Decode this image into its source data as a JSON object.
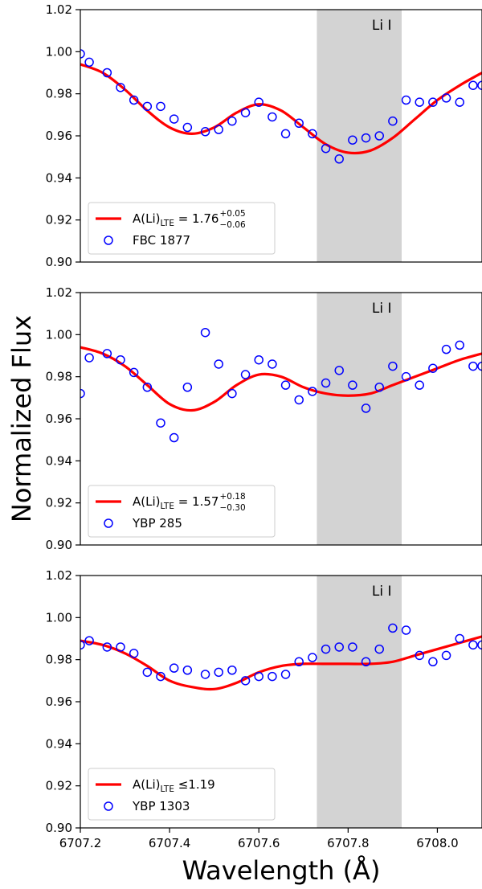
{
  "chart_data": [
    {
      "type": "line",
      "band_label": "Li I",
      "band_x": [
        6707.73,
        6707.92
      ],
      "xlim": [
        6707.2,
        6708.1
      ],
      "ylim": [
        0.9,
        1.02
      ],
      "yticks": [
        "0.90",
        "0.92",
        "0.94",
        "0.96",
        "0.98",
        "1.00",
        "1.02"
      ],
      "xticks": [],
      "legend": {
        "location": "lower-left",
        "line_main": "A(Li)",
        "line_sub": "LTE",
        "line_rel": " = 1.76",
        "sup": "+0.05",
        "sub": "−0.06",
        "points_label": "FBC 1877"
      },
      "series": [
        {
          "kind": "model-line",
          "color": "#ff0000",
          "x": [
            6707.2,
            6707.25,
            6707.3,
            6707.35,
            6707.4,
            6707.45,
            6707.5,
            6707.55,
            6707.6,
            6707.65,
            6707.7,
            6707.75,
            6707.8,
            6707.85,
            6707.9,
            6707.95,
            6708.0,
            6708.05,
            6708.1
          ],
          "y": [
            0.994,
            0.99,
            0.982,
            0.972,
            0.964,
            0.961,
            0.964,
            0.971,
            0.975,
            0.972,
            0.964,
            0.956,
            0.952,
            0.953,
            0.959,
            0.968,
            0.977,
            0.984,
            0.99
          ]
        },
        {
          "kind": "observed-points",
          "color": "#0000ff",
          "x": [
            6707.2,
            6707.22,
            6707.26,
            6707.29,
            6707.32,
            6707.35,
            6707.38,
            6707.41,
            6707.44,
            6707.48,
            6707.51,
            6707.54,
            6707.57,
            6707.6,
            6707.63,
            6707.66,
            6707.69,
            6707.72,
            6707.75,
            6707.78,
            6707.81,
            6707.84,
            6707.87,
            6707.9,
            6707.93,
            6707.96,
            6707.99,
            6708.02,
            6708.05,
            6708.08,
            6708.1
          ],
          "y": [
            0.999,
            0.995,
            0.99,
            0.983,
            0.977,
            0.974,
            0.974,
            0.968,
            0.964,
            0.962,
            0.963,
            0.967,
            0.971,
            0.976,
            0.969,
            0.961,
            0.966,
            0.961,
            0.954,
            0.949,
            0.958,
            0.959,
            0.96,
            0.967,
            0.977,
            0.976,
            0.976,
            0.978,
            0.976,
            0.984,
            0.984
          ]
        }
      ]
    },
    {
      "type": "line",
      "band_label": "Li I",
      "band_x": [
        6707.73,
        6707.92
      ],
      "xlim": [
        6707.2,
        6708.1
      ],
      "ylim": [
        0.9,
        1.02
      ],
      "yticks": [
        "0.90",
        "0.92",
        "0.94",
        "0.96",
        "0.98",
        "1.00",
        "1.02"
      ],
      "xticks": [],
      "legend": {
        "location": "lower-left",
        "line_main": "A(Li)",
        "line_sub": "LTE",
        "line_rel": " = 1.57",
        "sup": "+0.18",
        "sub": "−0.30",
        "points_label": "YBP 285"
      },
      "series": [
        {
          "kind": "model-line",
          "color": "#ff0000",
          "x": [
            6707.2,
            6707.25,
            6707.3,
            6707.35,
            6707.4,
            6707.45,
            6707.5,
            6707.55,
            6707.6,
            6707.65,
            6707.7,
            6707.75,
            6707.8,
            6707.85,
            6707.9,
            6707.95,
            6708.0,
            6708.05,
            6708.1
          ],
          "y": [
            0.994,
            0.991,
            0.985,
            0.976,
            0.967,
            0.964,
            0.968,
            0.976,
            0.981,
            0.98,
            0.975,
            0.972,
            0.971,
            0.972,
            0.976,
            0.98,
            0.984,
            0.988,
            0.991
          ]
        },
        {
          "kind": "observed-points",
          "color": "#0000ff",
          "x": [
            6707.2,
            6707.22,
            6707.26,
            6707.29,
            6707.32,
            6707.35,
            6707.38,
            6707.41,
            6707.44,
            6707.48,
            6707.51,
            6707.54,
            6707.57,
            6707.6,
            6707.63,
            6707.66,
            6707.69,
            6707.72,
            6707.75,
            6707.78,
            6707.81,
            6707.84,
            6707.87,
            6707.9,
            6707.93,
            6707.96,
            6707.99,
            6708.02,
            6708.05,
            6708.08,
            6708.1
          ],
          "y": [
            0.972,
            0.989,
            0.991,
            0.988,
            0.982,
            0.975,
            0.958,
            0.951,
            0.975,
            1.001,
            0.986,
            0.972,
            0.981,
            0.988,
            0.986,
            0.976,
            0.969,
            0.973,
            0.977,
            0.983,
            0.976,
            0.965,
            0.975,
            0.985,
            0.98,
            0.976,
            0.984,
            0.993,
            0.995,
            0.985,
            0.985
          ]
        }
      ]
    },
    {
      "type": "line",
      "band_label": "Li I",
      "band_x": [
        6707.73,
        6707.92
      ],
      "xlim": [
        6707.2,
        6708.1
      ],
      "ylim": [
        0.9,
        1.02
      ],
      "yticks": [
        "0.90",
        "0.92",
        "0.94",
        "0.96",
        "0.98",
        "1.00",
        "1.02"
      ],
      "xticks": [
        "6707.2",
        "6707.4",
        "6707.6",
        "6707.8",
        "6708.0"
      ],
      "legend": {
        "location": "lower-left",
        "line_main": "A(Li)",
        "line_sub": "LTE",
        "line_rel": " ≤1.19",
        "sup": "",
        "sub": "",
        "points_label": "YBP 1303"
      },
      "series": [
        {
          "kind": "model-line",
          "color": "#ff0000",
          "x": [
            6707.2,
            6707.25,
            6707.3,
            6707.35,
            6707.4,
            6707.45,
            6707.5,
            6707.55,
            6707.6,
            6707.65,
            6707.7,
            6707.75,
            6707.8,
            6707.85,
            6707.9,
            6707.95,
            6708.0,
            6708.05,
            6708.1
          ],
          "y": [
            0.989,
            0.987,
            0.983,
            0.977,
            0.97,
            0.967,
            0.966,
            0.969,
            0.974,
            0.977,
            0.978,
            0.978,
            0.978,
            0.978,
            0.979,
            0.982,
            0.985,
            0.988,
            0.991
          ]
        },
        {
          "kind": "observed-points",
          "color": "#0000ff",
          "x": [
            6707.2,
            6707.22,
            6707.26,
            6707.29,
            6707.32,
            6707.35,
            6707.38,
            6707.41,
            6707.44,
            6707.48,
            6707.51,
            6707.54,
            6707.57,
            6707.6,
            6707.63,
            6707.66,
            6707.69,
            6707.72,
            6707.75,
            6707.78,
            6707.81,
            6707.84,
            6707.87,
            6707.9,
            6707.93,
            6707.96,
            6707.99,
            6708.02,
            6708.05,
            6708.08,
            6708.1
          ],
          "y": [
            0.987,
            0.989,
            0.986,
            0.986,
            0.983,
            0.974,
            0.972,
            0.976,
            0.975,
            0.973,
            0.974,
            0.975,
            0.97,
            0.972,
            0.972,
            0.973,
            0.979,
            0.981,
            0.985,
            0.986,
            0.986,
            0.979,
            0.985,
            0.995,
            0.994,
            0.982,
            0.979,
            0.982,
            0.99,
            0.987,
            0.987
          ]
        }
      ]
    }
  ],
  "labels": {
    "ylabel": "Normalized Flux",
    "xlabel": "Wavelength (Å)"
  },
  "colors": {
    "model": "#ff0000",
    "points": "#0000ff",
    "band": "#d3d3d3"
  }
}
